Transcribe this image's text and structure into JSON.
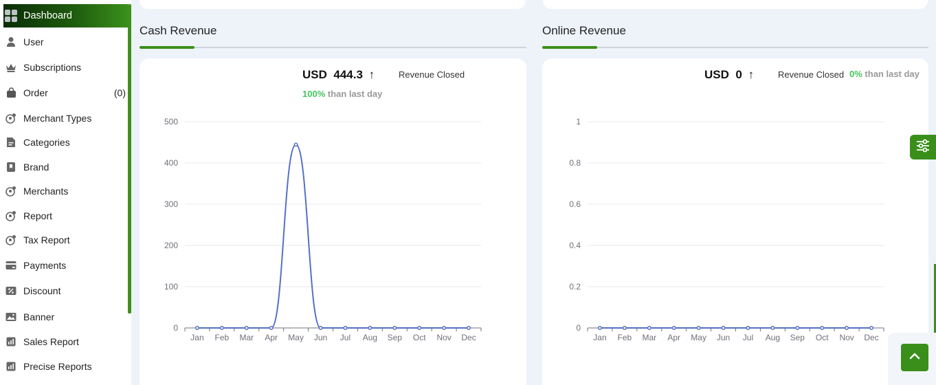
{
  "sidebar": {
    "items": [
      {
        "label": "Dashboard",
        "icon": "grid-icon",
        "count": ""
      },
      {
        "label": "User",
        "icon": "user-icon",
        "count": ""
      },
      {
        "label": "Subscriptions",
        "icon": "crown-icon",
        "count": ""
      },
      {
        "label": "Order",
        "icon": "bag-icon",
        "count": "(0)"
      },
      {
        "label": "Merchant Types",
        "icon": "merchant-icon",
        "count": ""
      },
      {
        "label": "Categories",
        "icon": "document-icon",
        "count": ""
      },
      {
        "label": "Brand",
        "icon": "bookmark-icon",
        "count": ""
      },
      {
        "label": "Merchants",
        "icon": "merchant-icon",
        "count": ""
      },
      {
        "label": "Report",
        "icon": "merchant-icon",
        "count": ""
      },
      {
        "label": "Tax Report",
        "icon": "merchant-icon",
        "count": ""
      },
      {
        "label": "Payments",
        "icon": "card-icon",
        "count": ""
      },
      {
        "label": "Discount",
        "icon": "discount-icon",
        "count": ""
      },
      {
        "label": "Banner",
        "icon": "image-icon",
        "count": ""
      },
      {
        "label": "Sales Report",
        "icon": "chart-icon",
        "count": ""
      },
      {
        "label": "Precise Reports",
        "icon": "chart-icon",
        "count": ""
      }
    ]
  },
  "cash": {
    "title": "Cash Revenue",
    "currency": "USD",
    "amount": "444.3",
    "trend": "↑",
    "closed_label": "Revenue Closed",
    "pct": "100%",
    "pct_suffix": "than last day"
  },
  "online": {
    "title": "Online Revenue",
    "currency": "USD",
    "amount": "0",
    "trend": "↑",
    "closed_label": "Revenue Closed",
    "pct": "0%",
    "pct_suffix": "than last day"
  },
  "colors": {
    "accent": "#3a8f1b",
    "line": "#5470c6",
    "positive": "#45c45e"
  },
  "chart_data": [
    {
      "type": "line",
      "x": [
        "Jan",
        "Feb",
        "Mar",
        "Apr",
        "May",
        "Jun",
        "Jul",
        "Aug",
        "Sep",
        "Oct",
        "Nov",
        "Dec"
      ],
      "series": [
        {
          "values": [
            0,
            0,
            0,
            0,
            444.3,
            0,
            0,
            0,
            0,
            0,
            0,
            0
          ]
        }
      ],
      "ylim": [
        0,
        500
      ],
      "yticks": [
        "0",
        "100",
        "200",
        "300",
        "400",
        "500"
      ],
      "smooth": true,
      "grid": true
    },
    {
      "type": "line",
      "x": [
        "Jan",
        "Feb",
        "Mar",
        "Apr",
        "May",
        "Jun",
        "Jul",
        "Aug",
        "Sep",
        "Oct",
        "Nov",
        "Dec"
      ],
      "series": [
        {
          "values": [
            0,
            0,
            0,
            0,
            0,
            0,
            0,
            0,
            0,
            0,
            0,
            0
          ]
        }
      ],
      "ylim": [
        0,
        1
      ],
      "yticks": [
        "0",
        "0.2",
        "0.4",
        "0.6",
        "0.8",
        "1"
      ],
      "smooth": true,
      "grid": true
    }
  ]
}
